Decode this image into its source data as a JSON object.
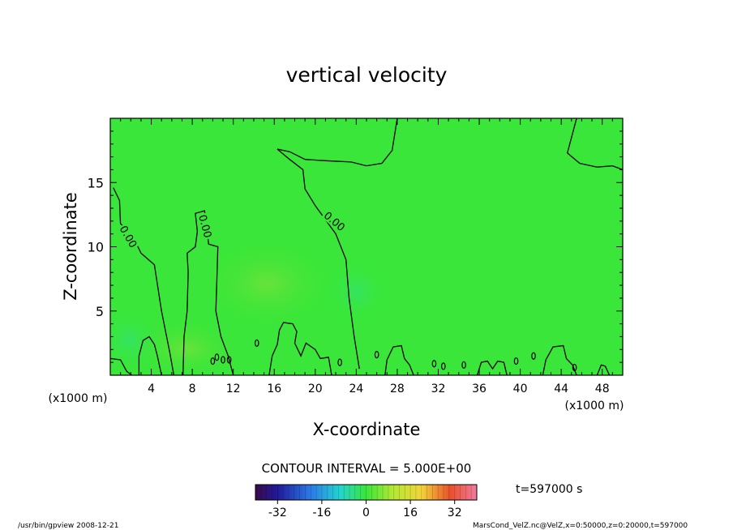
{
  "chart_data": {
    "type": "contour",
    "title": "vertical velocity",
    "xlabel": "X-coordinate",
    "ylabel": "Z-coordinate",
    "x_units_label": "(x1000 m)",
    "x_ticks": [
      4,
      8,
      12,
      16,
      20,
      24,
      28,
      32,
      36,
      40,
      44,
      48
    ],
    "y_ticks": [
      5,
      10,
      15
    ],
    "xlim": [
      0,
      50
    ],
    "ylim": [
      0,
      20
    ],
    "contour_labels": [
      {
        "text": "0.00",
        "x": 1.8,
        "z": 10.8
      },
      {
        "text": "0.00",
        "x": 9.3,
        "z": 11.6
      },
      {
        "text": "0.00",
        "x": 21.9,
        "z": 12.0
      }
    ],
    "contour_lines": [
      [
        [
          0.3,
          14.6
        ],
        [
          0.9,
          13.6
        ],
        [
          1.0,
          11.8
        ],
        [
          2.1,
          11.0
        ],
        [
          3.0,
          9.5
        ],
        [
          4.3,
          8.6
        ],
        [
          5.0,
          5.0
        ],
        [
          5.8,
          1.8
        ],
        [
          6.2,
          0.0
        ]
      ],
      [
        [
          7.1,
          0.0
        ],
        [
          7.2,
          3.0
        ],
        [
          7.5,
          5.0
        ],
        [
          7.6,
          8.0
        ],
        [
          7.5,
          9.5
        ],
        [
          8.3,
          10.0
        ],
        [
          8.5,
          11.2
        ],
        [
          8.3,
          12.6
        ],
        [
          9.2,
          12.8
        ],
        [
          9.4,
          11.5
        ],
        [
          9.6,
          10.2
        ],
        [
          10.5,
          10.0
        ],
        [
          10.4,
          7.5
        ],
        [
          10.3,
          5.0
        ],
        [
          10.8,
          3.0
        ],
        [
          11.5,
          1.5
        ],
        [
          12.0,
          0.0
        ]
      ],
      [
        [
          16.3,
          17.6
        ],
        [
          17.5,
          16.8
        ],
        [
          18.8,
          16.0
        ],
        [
          19.0,
          14.5
        ],
        [
          20.0,
          13.2
        ],
        [
          22.0,
          11.0
        ],
        [
          23.0,
          9.0
        ],
        [
          23.3,
          6.0
        ],
        [
          23.8,
          3.0
        ],
        [
          24.3,
          0.5
        ]
      ],
      [
        [
          16.3,
          17.6
        ],
        [
          17.5,
          17.4
        ],
        [
          19.0,
          16.8
        ],
        [
          21.0,
          16.7
        ],
        [
          23.5,
          16.6
        ],
        [
          25.0,
          16.3
        ],
        [
          26.5,
          16.5
        ],
        [
          27.5,
          17.5
        ],
        [
          27.8,
          19.0
        ],
        [
          28.0,
          20.0
        ]
      ],
      [
        [
          45.5,
          20.0
        ],
        [
          45.0,
          18.5
        ],
        [
          44.6,
          17.3
        ],
        [
          45.8,
          16.5
        ],
        [
          47.5,
          16.2
        ],
        [
          49.0,
          16.3
        ],
        [
          50.0,
          16.0
        ]
      ],
      [
        [
          0.0,
          1.3
        ],
        [
          1.0,
          1.2
        ],
        [
          1.6,
          0.3
        ],
        [
          2.1,
          0.0
        ]
      ],
      [
        [
          2.8,
          0.0
        ],
        [
          2.8,
          1.5
        ],
        [
          3.2,
          2.7
        ],
        [
          3.8,
          3.0
        ],
        [
          4.3,
          2.4
        ],
        [
          4.6,
          1.5
        ],
        [
          5.0,
          0.0
        ]
      ],
      [
        [
          15.5,
          0.0
        ],
        [
          15.8,
          1.5
        ],
        [
          16.3,
          2.4
        ],
        [
          16.5,
          3.5
        ],
        [
          16.9,
          4.1
        ],
        [
          17.8,
          4.0
        ],
        [
          18.2,
          3.4
        ],
        [
          18.0,
          2.5
        ],
        [
          18.6,
          1.5
        ],
        [
          19.1,
          2.5
        ],
        [
          20.0,
          2.0
        ],
        [
          20.5,
          1.3
        ],
        [
          21.3,
          1.4
        ],
        [
          21.6,
          0.0
        ]
      ],
      [
        [
          26.8,
          0.0
        ],
        [
          27.0,
          1.2
        ],
        [
          27.6,
          2.2
        ],
        [
          28.4,
          2.3
        ],
        [
          28.7,
          1.3
        ],
        [
          29.2,
          0.8
        ],
        [
          29.6,
          0.0
        ]
      ],
      [
        [
          42.2,
          0.0
        ],
        [
          42.5,
          1.2
        ],
        [
          43.2,
          2.2
        ],
        [
          44.2,
          2.3
        ],
        [
          44.5,
          1.3
        ],
        [
          45.1,
          0.8
        ],
        [
          45.5,
          0.0
        ]
      ],
      [
        [
          35.8,
          0.0
        ],
        [
          36.2,
          1.0
        ],
        [
          36.8,
          1.1
        ],
        [
          37.3,
          0.5
        ],
        [
          37.8,
          1.1
        ],
        [
          38.4,
          1.0
        ],
        [
          38.7,
          0.0
        ]
      ],
      [
        [
          47.5,
          0.0
        ],
        [
          47.9,
          0.8
        ],
        [
          48.3,
          0.7
        ],
        [
          48.7,
          0.0
        ]
      ]
    ],
    "contour_blobs": [
      {
        "x": 10.0,
        "z": 1.1
      },
      {
        "x": 10.4,
        "z": 1.4
      },
      {
        "x": 11.0,
        "z": 1.2
      },
      {
        "x": 11.6,
        "z": 1.2
      },
      {
        "x": 14.3,
        "z": 2.5
      },
      {
        "x": 22.4,
        "z": 1.0
      },
      {
        "x": 26.0,
        "z": 1.6
      },
      {
        "x": 31.6,
        "z": 0.9
      },
      {
        "x": 32.5,
        "z": 0.7
      },
      {
        "x": 34.5,
        "z": 0.8
      },
      {
        "x": 39.6,
        "z": 1.1
      },
      {
        "x": 41.3,
        "z": 1.5
      },
      {
        "x": 45.3,
        "z": 0.6
      }
    ],
    "field_color": "#39e639",
    "line_color": "#000000",
    "colorbar": {
      "ticks": [
        -32,
        -16,
        0,
        16,
        32
      ],
      "range": [
        -40,
        40
      ]
    }
  },
  "annotations": {
    "contour_interval": "CONTOUR INTERVAL = 5.000E+00",
    "time": "t=597000 s",
    "footer_left": "/usr/bin/gpview  2008-12-21",
    "footer_right": "MarsCond_VelZ.nc@VelZ,x=0:50000,z=0:20000,t=597000"
  }
}
